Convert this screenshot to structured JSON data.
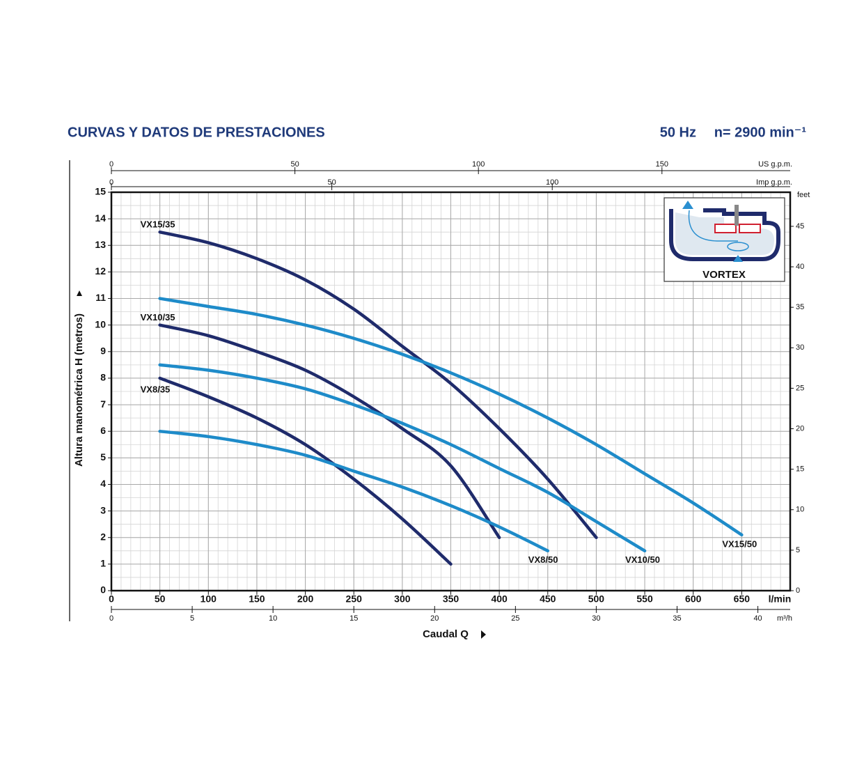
{
  "chart_data": {
    "type": "line",
    "title": "CURVAS Y DATOS DE PRESTACIONES",
    "frequency": "50 Hz",
    "speed": "n= 2900 min⁻¹",
    "x_label": "Caudal Q",
    "y_label": "Altura manométrica H (metros)",
    "x_unit": "l/min",
    "xlim": [
      0,
      700
    ],
    "xticks": [
      0,
      50,
      100,
      150,
      200,
      250,
      300,
      350,
      400,
      450,
      500,
      550,
      600,
      650
    ],
    "ylim": [
      0,
      15
    ],
    "yticks": [
      0,
      1,
      2,
      3,
      4,
      5,
      6,
      7,
      8,
      9,
      10,
      11,
      12,
      13,
      14,
      15
    ],
    "grid": true,
    "minor_grid": {
      "x": 10,
      "y": 0.5
    },
    "x": [
      50,
      100,
      150,
      200,
      250,
      300,
      350,
      400,
      450,
      500,
      550,
      600,
      650
    ],
    "series": [
      {
        "name": "VX15/35",
        "color": "#1f2b6b",
        "values": [
          13.5,
          13.1,
          12.5,
          11.7,
          10.6,
          9.2,
          7.8,
          6.1,
          4.2,
          2.0,
          null,
          null,
          null
        ]
      },
      {
        "name": "VX10/35",
        "color": "#1f2b6b",
        "values": [
          10.0,
          9.6,
          9.0,
          8.3,
          7.3,
          6.1,
          4.7,
          2.0,
          null,
          null,
          null,
          null,
          null
        ]
      },
      {
        "name": "VX8/35",
        "color": "#1f2b6b",
        "values": [
          8.0,
          7.3,
          6.5,
          5.5,
          4.2,
          2.7,
          1.0,
          null,
          null,
          null,
          null,
          null,
          null
        ]
      },
      {
        "name": "VX15/50",
        "color": "#1e8bc9",
        "values": [
          11.0,
          10.7,
          10.4,
          10.0,
          9.5,
          8.9,
          8.2,
          7.4,
          6.5,
          5.5,
          4.4,
          3.3,
          2.1
        ]
      },
      {
        "name": "VX10/50",
        "color": "#1e8bc9",
        "values": [
          8.5,
          8.3,
          8.0,
          7.6,
          7.0,
          6.3,
          5.5,
          4.6,
          3.7,
          2.6,
          1.5,
          null,
          null
        ]
      },
      {
        "name": "VX8/50",
        "color": "#1e8bc9",
        "values": [
          6.0,
          5.8,
          5.5,
          5.1,
          4.5,
          3.9,
          3.2,
          2.4,
          1.5,
          null,
          null,
          null,
          null
        ]
      }
    ],
    "secondary_axes": [
      {
        "label": "US g.p.m.",
        "lim": [
          0,
          184.94
        ],
        "ticks": [
          0,
          50,
          100,
          150
        ]
      },
      {
        "label": "Imp g.p.m.",
        "lim": [
          0,
          153.98
        ],
        "ticks": [
          0,
          50,
          100
        ]
      },
      {
        "label": "m³/h",
        "lim": [
          0,
          42
        ],
        "ticks": [
          0,
          5,
          10,
          15,
          20,
          25,
          30,
          35,
          40
        ]
      }
    ],
    "y2_label": "feet",
    "y2lim": [
      0,
      49.21
    ],
    "y2ticks": [
      0,
      5,
      10,
      15,
      20,
      25,
      30,
      35,
      40,
      45
    ],
    "inset_label": "VORTEX"
  }
}
